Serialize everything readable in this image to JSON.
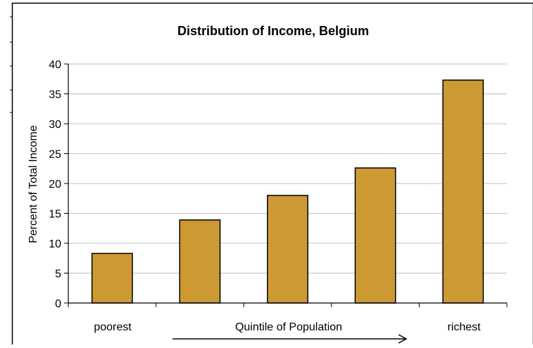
{
  "chart_data": {
    "type": "bar",
    "title": "Distribution of Income, Belgium",
    "ylabel": "Percent of Total Income",
    "xlabel": "Quintile of Population",
    "x_tick_labels": {
      "left": "poorest",
      "right": "richest"
    },
    "categories": [
      "poorest",
      "",
      "",
      "",
      "richest"
    ],
    "values": [
      8.3,
      13.9,
      18.0,
      22.6,
      37.3
    ],
    "ylim": [
      0,
      40
    ],
    "yticks": [
      "0",
      "5",
      "10",
      "15",
      "20",
      "25",
      "30",
      "35",
      "40"
    ],
    "grid": true,
    "bar_color": "#CC9933"
  }
}
